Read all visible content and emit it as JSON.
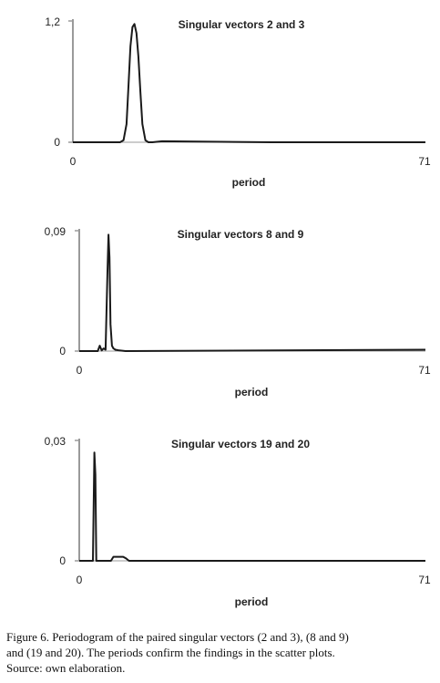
{
  "chart_data": [
    {
      "type": "line",
      "title": "Singular vectors 2 and 3",
      "xlabel": "period",
      "ylabel": "",
      "xlim": [
        0,
        71
      ],
      "ylim": [
        0,
        1.2
      ],
      "xtick_labels": [
        "0",
        "71"
      ],
      "ytick_labels": [
        "0",
        "1,2"
      ],
      "grid": false,
      "series": [
        {
          "x": [
            0,
            9.5,
            10.2,
            10.8,
            11.2,
            11.6,
            12.0,
            12.4,
            12.8,
            13.2,
            13.6,
            14.0,
            14.6,
            15.2,
            16,
            18,
            40,
            71
          ],
          "y": [
            0,
            0,
            0.02,
            0.18,
            0.55,
            0.95,
            1.14,
            1.17,
            1.08,
            0.85,
            0.5,
            0.18,
            0.02,
            0,
            0,
            0.01,
            0,
            0
          ]
        }
      ]
    },
    {
      "type": "line",
      "title": "Singular vectors 8 and 9",
      "xlabel": "period",
      "ylabel": "",
      "xlim": [
        0,
        71
      ],
      "ylim": [
        0,
        0.09
      ],
      "xtick_labels": [
        "0",
        "71"
      ],
      "ytick_labels": [
        "0",
        "0,09"
      ],
      "grid": false,
      "series": [
        {
          "x": [
            0,
            3.8,
            4.2,
            4.6,
            5.0,
            5.4,
            5.8,
            6.0,
            6.2,
            6.4,
            6.7,
            7.0,
            7.4,
            8.2,
            9.5,
            71
          ],
          "y": [
            0,
            0,
            0.004,
            0.0005,
            0.002,
            0.001,
            0.06,
            0.087,
            0.07,
            0.02,
            0.004,
            0.002,
            0.001,
            0.0005,
            0,
            0.001
          ]
        }
      ]
    },
    {
      "type": "line",
      "title": "Singular vectors 19 and 20",
      "xlabel": "period",
      "ylabel": "",
      "xlim": [
        0,
        71
      ],
      "ylim": [
        0,
        0.03
      ],
      "xtick_labels": [
        "0",
        "71"
      ],
      "ytick_labels": [
        "0",
        "0,03"
      ],
      "grid": false,
      "series": [
        {
          "x": [
            0,
            2.8,
            3.1,
            3.3,
            3.5,
            3.8,
            6.5,
            7.0,
            9.0,
            9.6,
            10.2,
            71
          ],
          "y": [
            0,
            0,
            0.027,
            0.0215,
            0,
            0,
            0,
            0.001,
            0.001,
            0.0006,
            0,
            0
          ]
        }
      ]
    }
  ],
  "caption": {
    "line1": "Figure 6.  Periodogram of the paired singular vectors (2 and 3), (8 and 9)",
    "line2": "and (19 and 20). The periods confirm the findings in the scatter plots.",
    "line3": "Source: own elaboration."
  }
}
